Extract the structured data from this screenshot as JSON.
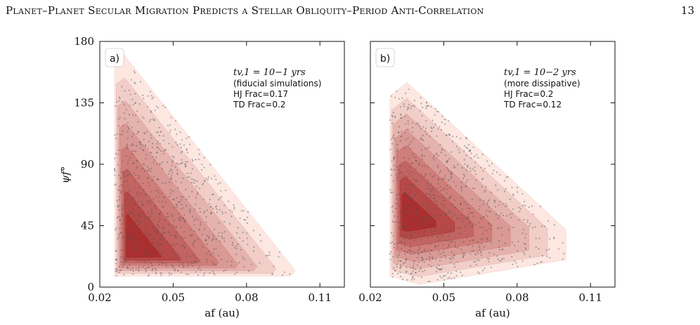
{
  "header": {
    "running_title": "Planet–Planet Secular Migration Predicts a Stellar Obliquity–Period Anti-Correlation",
    "page_number": "13"
  },
  "chart_data": [
    {
      "type": "contour",
      "panel_label": "a)",
      "annotation_lines": [
        "t_{v,1} = 10^{-1} yrs",
        "(fiducial simulations)",
        "HJ Frac=0.17",
        "TD Frac=0.2"
      ],
      "annotation_math": "tv,1 = 10−1 yrs",
      "annotation_text": [
        "(fiducial simulations)",
        "HJ Frac=0.17",
        "TD Frac=0.2"
      ],
      "hj_frac": 0.17,
      "td_frac": 0.2,
      "xlabel": "af (au)",
      "ylabel": "ψf°",
      "xlim": [
        0.02,
        0.12
      ],
      "ylim": [
        0,
        180
      ],
      "x_ticks": [
        "0.02",
        "0.05",
        "0.08",
        "0.11"
      ],
      "y_ticks": [
        "0",
        "45",
        "90",
        "135",
        "180"
      ],
      "density_peak": {
        "x": 0.032,
        "y": 25
      },
      "outer_envelope": [
        [
          0.026,
          8
        ],
        [
          0.026,
          165
        ],
        [
          0.03,
          170
        ],
        [
          0.1,
          12
        ],
        [
          0.098,
          8
        ]
      ],
      "levels": 8,
      "color_low": "#fbe3dc",
      "color_high": "#a82a2a"
    },
    {
      "type": "contour",
      "panel_label": "b)",
      "annotation_lines": [
        "t_{v,1} = 10^{-2} yrs",
        "(more dissipative)",
        "HJ Frac=0.2",
        "TD Frac=0.12"
      ],
      "annotation_math": "tv,1 = 10−2 yrs",
      "annotation_text": [
        "(more dissipative)",
        "HJ Frac=0.2",
        "TD Frac=0.12"
      ],
      "hj_frac": 0.2,
      "td_frac": 0.12,
      "xlabel": "af (au)",
      "ylabel": "",
      "xlim": [
        0.02,
        0.12
      ],
      "ylim": [
        0,
        180
      ],
      "x_ticks": [
        "0.02",
        "0.05",
        "0.08",
        "0.11"
      ],
      "y_ticks": [],
      "density_peak": {
        "x": 0.034,
        "y": 50
      },
      "outer_envelope": [
        [
          0.028,
          8
        ],
        [
          0.028,
          140
        ],
        [
          0.035,
          150
        ],
        [
          0.1,
          42
        ],
        [
          0.1,
          20
        ],
        [
          0.04,
          2
        ]
      ],
      "levels": 8,
      "color_low": "#fbe3dc",
      "color_high": "#a82a2a"
    }
  ]
}
